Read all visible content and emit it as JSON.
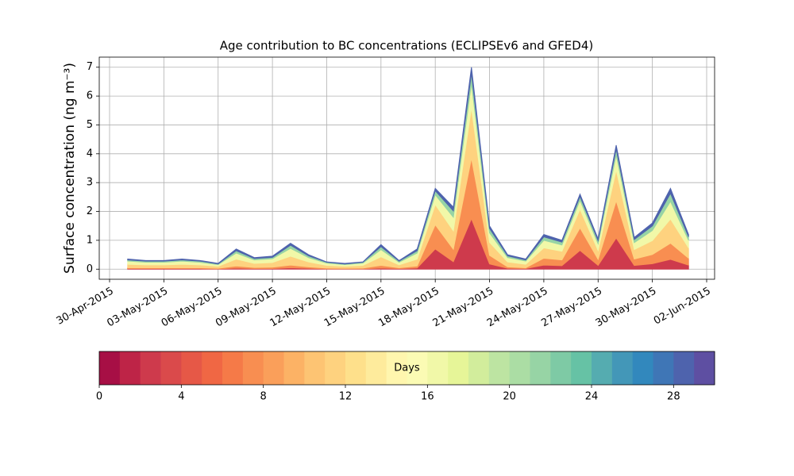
{
  "chart_data": {
    "type": "stacked-area",
    "title": "Age contribution to BC concentrations (ECLIPSEv6 and GFED4)",
    "y_label": "Surface concentration (ng m⁻³)",
    "x": [
      "2015-05-01",
      "2015-05-02",
      "2015-05-03",
      "2015-05-04",
      "2015-05-05",
      "2015-05-06",
      "2015-05-07",
      "2015-05-08",
      "2015-05-09",
      "2015-05-10",
      "2015-05-11",
      "2015-05-12",
      "2015-05-13",
      "2015-05-14",
      "2015-05-15",
      "2015-05-16",
      "2015-05-17",
      "2015-05-18",
      "2015-05-19",
      "2015-05-20",
      "2015-05-21",
      "2015-05-22",
      "2015-05-23",
      "2015-05-24",
      "2015-05-25",
      "2015-05-26",
      "2015-05-27",
      "2015-05-28",
      "2015-05-29",
      "2015-05-30",
      "2015-05-31",
      "2015-06-01"
    ],
    "series": [
      {
        "color": "#ce3a4c",
        "values": [
          0.02,
          0.02,
          0.02,
          0.02,
          0.02,
          0.01,
          0.04,
          0.02,
          0.02,
          0.05,
          0.03,
          0.01,
          0.01,
          0.01,
          0.04,
          0.02,
          0.04,
          0.7,
          0.26,
          1.75,
          0.18,
          0.03,
          0.02,
          0.14,
          0.12,
          0.65,
          0.13,
          1.08,
          0.13,
          0.19,
          0.34,
          0.14
        ]
      },
      {
        "color": "#f88e51",
        "values": [
          0.03,
          0.03,
          0.03,
          0.03,
          0.03,
          0.02,
          0.07,
          0.04,
          0.05,
          0.09,
          0.05,
          0.03,
          0.02,
          0.03,
          0.09,
          0.03,
          0.07,
          0.84,
          0.43,
          2.1,
          0.3,
          0.05,
          0.03,
          0.24,
          0.2,
          0.78,
          0.21,
          1.29,
          0.22,
          0.32,
          0.56,
          0.24
        ]
      },
      {
        "color": "#fed27f",
        "values": [
          0.12,
          0.1,
          0.1,
          0.12,
          0.1,
          0.07,
          0.24,
          0.14,
          0.16,
          0.31,
          0.17,
          0.09,
          0.07,
          0.09,
          0.3,
          0.1,
          0.24,
          0.7,
          0.64,
          1.75,
          0.45,
          0.17,
          0.12,
          0.36,
          0.3,
          0.65,
          0.31,
          1.07,
          0.33,
          0.48,
          0.84,
          0.36
        ]
      },
      {
        "color": "#f1f8a8",
        "values": [
          0.11,
          0.09,
          0.09,
          0.11,
          0.09,
          0.06,
          0.21,
          0.12,
          0.13,
          0.27,
          0.15,
          0.08,
          0.06,
          0.08,
          0.25,
          0.09,
          0.21,
          0.34,
          0.47,
          0.84,
          0.33,
          0.15,
          0.11,
          0.26,
          0.22,
          0.31,
          0.23,
          0.52,
          0.24,
          0.35,
          0.61,
          0.26
        ]
      },
      {
        "color": "#97d4a5",
        "values": [
          0.04,
          0.04,
          0.04,
          0.04,
          0.04,
          0.02,
          0.08,
          0.05,
          0.05,
          0.11,
          0.06,
          0.03,
          0.02,
          0.03,
          0.1,
          0.04,
          0.08,
          0.14,
          0.22,
          0.35,
          0.15,
          0.06,
          0.04,
          0.12,
          0.1,
          0.13,
          0.11,
          0.21,
          0.11,
          0.16,
          0.28,
          0.12
        ]
      },
      {
        "color": "#4e63ad",
        "values": [
          0.03,
          0.02,
          0.02,
          0.03,
          0.02,
          0.02,
          0.06,
          0.03,
          0.04,
          0.07,
          0.04,
          0.01,
          0.02,
          0.01,
          0.07,
          0.02,
          0.06,
          0.08,
          0.13,
          0.21,
          0.09,
          0.04,
          0.03,
          0.08,
          0.06,
          0.08,
          0.06,
          0.13,
          0.07,
          0.1,
          0.17,
          0.08
        ]
      }
    ],
    "xlim": [
      "2015-04-30",
      "2015-06-02"
    ],
    "xticks": [
      {
        "value": "2015-04-30",
        "label": "30-Apr-2015"
      },
      {
        "value": "2015-05-03",
        "label": "03-May-2015"
      },
      {
        "value": "2015-05-06",
        "label": "06-May-2015"
      },
      {
        "value": "2015-05-09",
        "label": "09-May-2015"
      },
      {
        "value": "2015-05-12",
        "label": "12-May-2015"
      },
      {
        "value": "2015-05-15",
        "label": "15-May-2015"
      },
      {
        "value": "2015-05-18",
        "label": "18-May-2015"
      },
      {
        "value": "2015-05-21",
        "label": "21-May-2015"
      },
      {
        "value": "2015-05-24",
        "label": "24-May-2015"
      },
      {
        "value": "2015-05-27",
        "label": "27-May-2015"
      },
      {
        "value": "2015-05-30",
        "label": "30-May-2015"
      },
      {
        "value": "2015-06-02",
        "label": "02-Jun-2015"
      }
    ],
    "ylim": [
      -0.35,
      7.35
    ],
    "yticks": [
      0,
      1,
      2,
      3,
      4,
      5,
      6,
      7
    ],
    "grid": true,
    "colorbar": {
      "label": "Days",
      "lim": [
        0,
        30
      ],
      "ticks": [
        0,
        4,
        8,
        12,
        16,
        20,
        24,
        28
      ],
      "colors": [
        "#a70f45",
        "#be2447",
        "#ce3a4c",
        "#da4a4b",
        "#e65847",
        "#f06744",
        "#f57a48",
        "#f88e51",
        "#fa9f5a",
        "#fcb265",
        "#fdc473",
        "#fed27f",
        "#fee08b",
        "#feeb9c",
        "#fff6ae",
        "#fbfbb4",
        "#f1f8a8",
        "#e6f598",
        "#d2ed9c",
        "#bde4a2",
        "#abdda4",
        "#97d4a5",
        "#7ecaa5",
        "#66c2a5",
        "#55acb0",
        "#4397b8",
        "#3288bd",
        "#3f76b6",
        "#4e63ad",
        "#5e4fa2"
      ]
    }
  }
}
